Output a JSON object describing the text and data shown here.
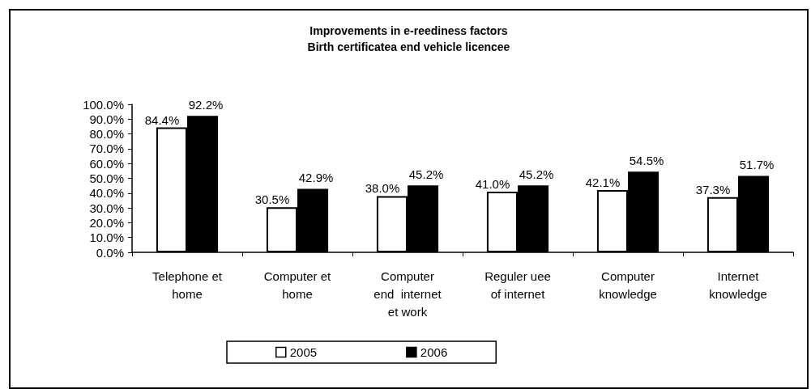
{
  "chart_data": {
    "type": "bar",
    "title": "Improvements in e-reediness factors",
    "subtitle": "Birth certificatea end vehicle licencee",
    "categories": [
      "Telephone et\nhome",
      "Computer et\nhome",
      "Computer\nend  internet\net work",
      "Reguler uee\nof internet",
      "Computer\nknowledge",
      "Internet\nknowledge"
    ],
    "series": [
      {
        "name": "2005",
        "color": "#ffffff",
        "values": [
          84.4,
          30.5,
          38.0,
          41.0,
          42.1,
          37.3
        ],
        "value_labels": [
          "84.4%",
          "30.5%",
          "38.0%",
          "41.0%",
          "42.1%",
          "37.3%"
        ]
      },
      {
        "name": "2006",
        "color": "#000000",
        "values": [
          92.2,
          42.9,
          45.2,
          45.2,
          54.5,
          51.7
        ],
        "value_labels": [
          "92.2%",
          "42.9%",
          "45.2%",
          "45.2%",
          "54.5%",
          "51.7%"
        ]
      }
    ],
    "ylim": [
      0,
      100
    ],
    "yticks": [
      {
        "value": 0,
        "label": "0.0%"
      },
      {
        "value": 10,
        "label": "10.0%"
      },
      {
        "value": 20,
        "label": "20.0%"
      },
      {
        "value": 30,
        "label": "30.0%"
      },
      {
        "value": 40,
        "label": "40.0%"
      },
      {
        "value": 50,
        "label": "50.0%"
      },
      {
        "value": 60,
        "label": "60.0%"
      },
      {
        "value": 70,
        "label": "70.0%"
      },
      {
        "value": 80,
        "label": "80.0%"
      },
      {
        "value": 90,
        "label": "90.0%"
      },
      {
        "value": 100,
        "label": "100.0%"
      }
    ],
    "grid": false,
    "legend": "bottom"
  }
}
